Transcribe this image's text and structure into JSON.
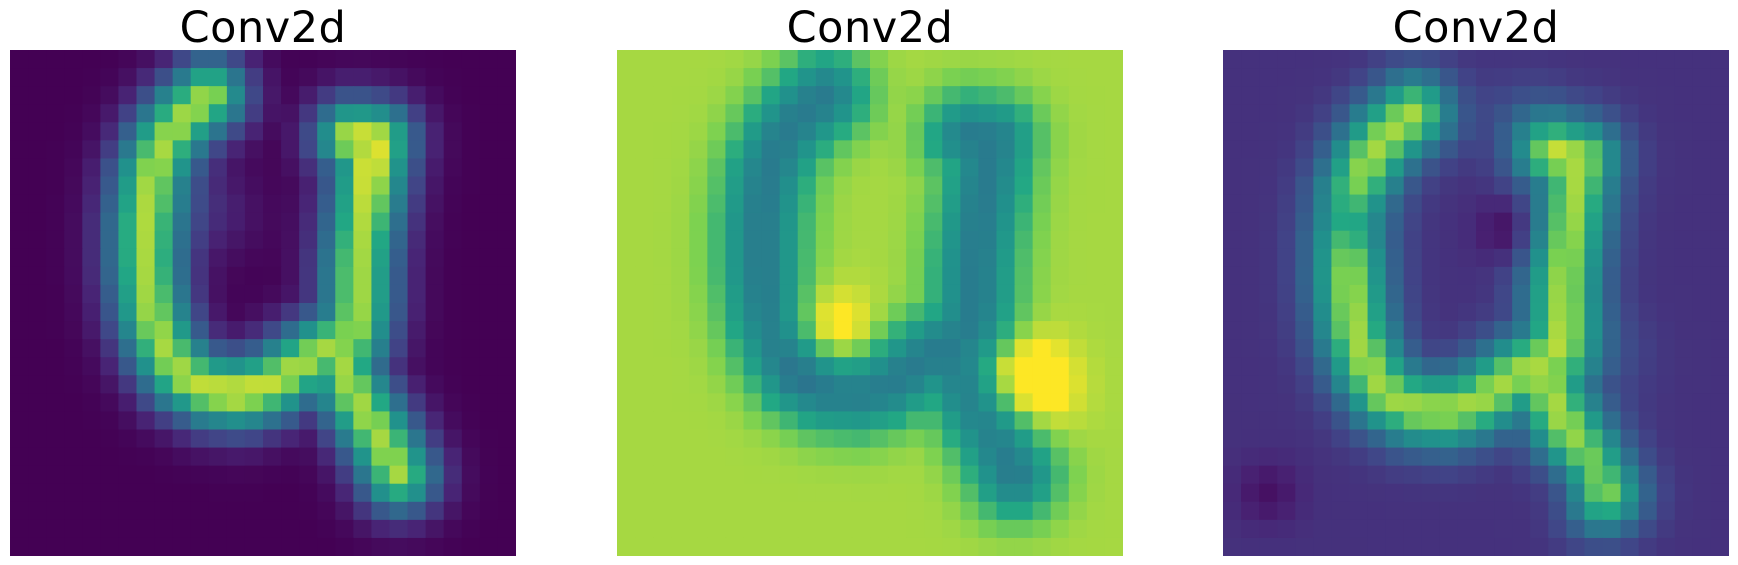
{
  "chart_data": [
    {
      "type": "heatmap",
      "title": "Conv2d",
      "colormap": "viridis",
      "axes": "off",
      "size": [
        28,
        28
      ],
      "field": {
        "background": 0.0,
        "scale": 1.0,
        "ridge": 0.92,
        "peaks": [
          {
            "center": [
              9.0,
              11.5
            ],
            "weight": 0.12
          },
          {
            "center": [
              19.0,
              12.5
            ],
            "weight": 0.05
          },
          {
            "center": [
              6.0,
              19.5
            ],
            "weight": 0.08
          }
        ],
        "holes": []
      },
      "stroke": [
        [
          2.5,
          11.0
        ],
        [
          3.8,
          9.5
        ],
        [
          5.2,
          8.5
        ],
        [
          7.0,
          7.8
        ],
        [
          9.5,
          7.5
        ],
        [
          12.0,
          7.5
        ],
        [
          14.5,
          7.8
        ],
        [
          16.5,
          8.5
        ],
        [
          18.0,
          9.5
        ],
        [
          18.8,
          11.0
        ],
        [
          19.0,
          12.8
        ],
        [
          18.5,
          14.5
        ],
        [
          17.5,
          16.0
        ],
        [
          16.5,
          17.5
        ],
        [
          15.8,
          19.0
        ],
        [
          14.0,
          19.3
        ],
        [
          12.0,
          19.3
        ],
        [
          10.0,
          19.5
        ],
        [
          8.0,
          19.8
        ],
        [
          6.5,
          20.0
        ],
        [
          5.0,
          20.3
        ],
        [
          4.8,
          19.0
        ]
      ],
      "branch": [
        [
          16.5,
          18.0
        ],
        [
          19.0,
          19.0
        ],
        [
          21.5,
          20.5
        ],
        [
          23.5,
          21.5
        ]
      ]
    },
    {
      "type": "heatmap",
      "title": "Conv2d",
      "colormap": "viridis",
      "axes": "off",
      "size": [
        28,
        28
      ],
      "field": {
        "background": 0.92,
        "scale": -0.9,
        "ridge": 0.45,
        "peaks": [
          {
            "center": [
              18.5,
              22.5
            ],
            "weight": -0.25
          },
          {
            "center": [
              16.0,
              11.5
            ],
            "weight": -0.2
          }
        ],
        "holes": [
          {
            "center": [
              17.5,
              10.5
            ],
            "weight": 0.12
          }
        ]
      },
      "stroke": [
        [
          2.5,
          11.5
        ],
        [
          3.8,
          10.0
        ],
        [
          5.2,
          9.0
        ],
        [
          7.0,
          8.3
        ],
        [
          9.5,
          8.0
        ],
        [
          12.0,
          8.0
        ],
        [
          14.5,
          8.3
        ],
        [
          16.5,
          9.0
        ],
        [
          18.0,
          10.0
        ],
        [
          18.8,
          11.5
        ],
        [
          19.0,
          13.3
        ],
        [
          18.5,
          15.0
        ],
        [
          17.5,
          16.5
        ],
        [
          16.5,
          18.0
        ],
        [
          15.8,
          19.5
        ],
        [
          14.0,
          19.8
        ],
        [
          12.0,
          19.8
        ],
        [
          10.0,
          20.0
        ],
        [
          8.0,
          20.3
        ],
        [
          6.5,
          20.5
        ],
        [
          5.0,
          20.8
        ],
        [
          4.8,
          19.5
        ]
      ],
      "branch": [
        [
          16.5,
          18.5
        ],
        [
          19.0,
          19.5
        ],
        [
          21.5,
          21.0
        ],
        [
          23.5,
          22.0
        ]
      ]
    },
    {
      "type": "heatmap",
      "title": "Conv2d",
      "colormap": "viridis",
      "axes": "off",
      "size": [
        28,
        28
      ],
      "field": {
        "background": 0.18,
        "scale": 0.82,
        "ridge": 0.9,
        "peaks": [
          {
            "center": [
              4.0,
              16.5
            ],
            "weight": 0.15
          },
          {
            "center": [
              17.0,
              21.5
            ],
            "weight": 0.1
          }
        ],
        "holes": [
          {
            "center": [
              9.5,
              7.5
            ],
            "weight": 0.16
          },
          {
            "center": [
              10.0,
              16.0
            ],
            "weight": 0.18
          },
          {
            "center": [
              24.0,
              19.0
            ],
            "weight": 0.15
          },
          {
            "center": [
              24.5,
              2.5
            ],
            "weight": 0.12
          }
        ]
      },
      "stroke": [
        [
          3.5,
          10.5
        ],
        [
          4.8,
          9.0
        ],
        [
          6.2,
          8.0
        ],
        [
          8.0,
          7.3
        ],
        [
          10.5,
          7.0
        ],
        [
          13.0,
          7.0
        ],
        [
          15.5,
          7.3
        ],
        [
          17.5,
          8.0
        ],
        [
          19.0,
          9.0
        ],
        [
          19.8,
          10.5
        ],
        [
          20.0,
          12.3
        ],
        [
          19.5,
          14.0
        ],
        [
          18.5,
          15.5
        ],
        [
          17.5,
          17.0
        ],
        [
          16.8,
          18.5
        ],
        [
          15.0,
          18.8
        ],
        [
          13.0,
          18.8
        ],
        [
          11.0,
          19.0
        ],
        [
          9.0,
          19.3
        ],
        [
          7.5,
          19.5
        ],
        [
          6.0,
          19.8
        ],
        [
          5.8,
          18.5
        ]
      ],
      "branch": [
        [
          17.5,
          17.5
        ],
        [
          20.0,
          18.5
        ],
        [
          22.5,
          20.0
        ],
        [
          24.5,
          21.0
        ]
      ]
    }
  ]
}
